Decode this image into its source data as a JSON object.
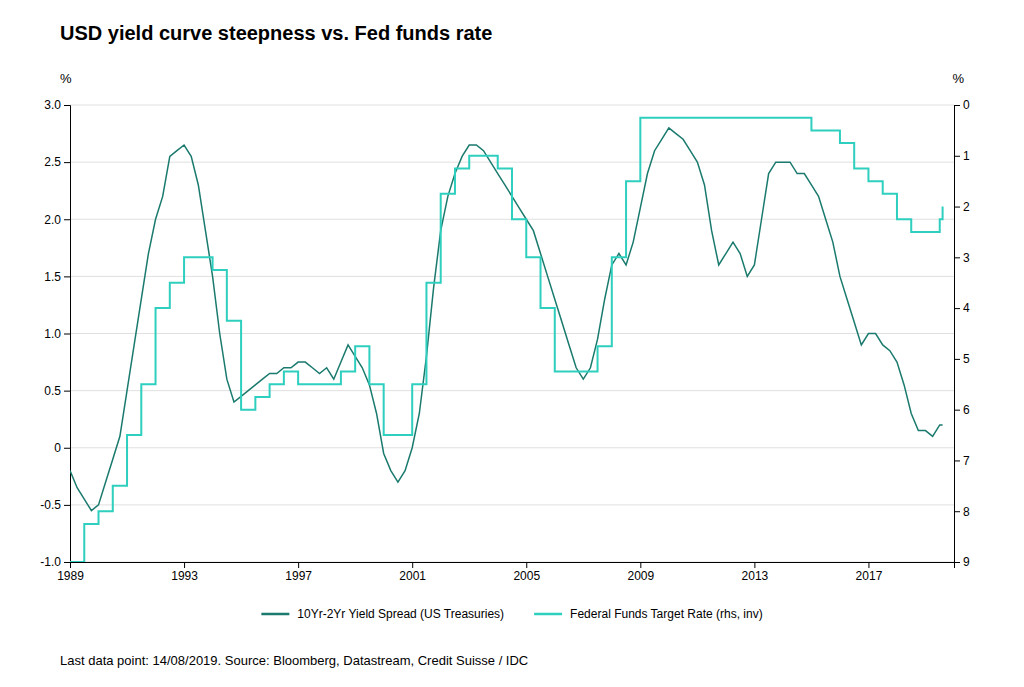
{
  "chart_data": {
    "type": "line",
    "title": "USD yield curve steepness vs. Fed funds rate",
    "ylabel": "%",
    "y2label": "%",
    "annotations": [
      "Last data point: 14/08/2019. Source: Bloomberg, Datastream, Credit Suisse / IDC"
    ],
    "background_color": "#ffffff",
    "xlim": [
      1989,
      2020
    ],
    "xticks": [
      1989,
      1993,
      1997,
      2001,
      2005,
      2009,
      2013,
      2017
    ],
    "ylim": [
      -1.0,
      3.0
    ],
    "yticks": [
      {
        "value": -1.0,
        "label": "-1.0"
      },
      -0.5,
      0,
      0.5,
      {
        "value": 1.0,
        "label": "1.0"
      },
      1.5,
      {
        "value": 2.0,
        "label": "2.0"
      },
      2.5,
      {
        "value": 3.0,
        "label": "3.0"
      }
    ],
    "y2lim": [
      9,
      0
    ],
    "y2ticks": [
      0,
      1,
      2,
      3,
      4,
      5,
      6,
      7,
      8,
      9
    ],
    "grid": true,
    "legend": "bottom",
    "series": [
      {
        "name": "10Yr-2Yr Yield Spread (US Treasuries)",
        "color": "#1a7a6e",
        "type": "line",
        "x": [
          1989.0,
          1989.25,
          1989.5,
          1989.75,
          1990.0,
          1990.25,
          1990.5,
          1990.75,
          1991.0,
          1991.25,
          1991.5,
          1991.75,
          1992.0,
          1992.25,
          1992.5,
          1992.75,
          1993.0,
          1993.25,
          1993.5,
          1993.75,
          1994.0,
          1994.25,
          1994.5,
          1994.75,
          1995.0,
          1995.25,
          1995.5,
          1995.75,
          1996.0,
          1996.25,
          1996.5,
          1996.75,
          1997.0,
          1997.25,
          1997.5,
          1997.75,
          1998.0,
          1998.25,
          1998.5,
          1998.75,
          1999.0,
          1999.25,
          1999.5,
          1999.75,
          2000.0,
          2000.25,
          2000.5,
          2000.75,
          2001.0,
          2001.25,
          2001.5,
          2001.75,
          2002.0,
          2002.25,
          2002.5,
          2002.75,
          2003.0,
          2003.25,
          2003.5,
          2003.75,
          2004.0,
          2004.25,
          2004.5,
          2004.75,
          2005.0,
          2005.25,
          2005.5,
          2005.75,
          2006.0,
          2006.25,
          2006.5,
          2006.75,
          2007.0,
          2007.25,
          2007.5,
          2007.75,
          2008.0,
          2008.25,
          2008.5,
          2008.75,
          2009.0,
          2009.25,
          2009.5,
          2009.75,
          2010.0,
          2010.25,
          2010.5,
          2010.75,
          2011.0,
          2011.25,
          2011.5,
          2011.75,
          2012.0,
          2012.25,
          2012.5,
          2012.75,
          2013.0,
          2013.25,
          2013.5,
          2013.75,
          2014.0,
          2014.25,
          2014.5,
          2014.75,
          2015.0,
          2015.25,
          2015.5,
          2015.75,
          2016.0,
          2016.25,
          2016.5,
          2016.75,
          2017.0,
          2017.25,
          2017.5,
          2017.75,
          2018.0,
          2018.25,
          2018.5,
          2018.75,
          2019.0,
          2019.25,
          2019.5,
          2019.6
        ],
        "values": [
          -0.2,
          -0.35,
          -0.45,
          -0.55,
          -0.5,
          -0.3,
          -0.1,
          0.1,
          0.5,
          0.9,
          1.3,
          1.7,
          2.0,
          2.2,
          2.55,
          2.6,
          2.65,
          2.55,
          2.3,
          1.9,
          1.5,
          1.0,
          0.6,
          0.4,
          0.45,
          0.5,
          0.55,
          0.6,
          0.65,
          0.65,
          0.7,
          0.7,
          0.75,
          0.75,
          0.7,
          0.65,
          0.7,
          0.6,
          0.75,
          0.9,
          0.8,
          0.7,
          0.55,
          0.3,
          -0.05,
          -0.2,
          -0.3,
          -0.2,
          0.0,
          0.3,
          0.8,
          1.4,
          1.9,
          2.2,
          2.4,
          2.55,
          2.65,
          2.65,
          2.6,
          2.5,
          2.4,
          2.3,
          2.2,
          2.1,
          2.0,
          1.9,
          1.7,
          1.5,
          1.3,
          1.1,
          0.9,
          0.7,
          0.6,
          0.7,
          0.95,
          1.3,
          1.6,
          1.7,
          1.6,
          1.8,
          2.1,
          2.4,
          2.6,
          2.7,
          2.8,
          2.75,
          2.7,
          2.6,
          2.5,
          2.3,
          1.9,
          1.6,
          1.7,
          1.8,
          1.7,
          1.5,
          1.6,
          2.0,
          2.4,
          2.5,
          2.5,
          2.5,
          2.4,
          2.4,
          2.3,
          2.2,
          2.0,
          1.8,
          1.5,
          1.3,
          1.1,
          0.9,
          1.0,
          1.0,
          0.9,
          0.85,
          0.75,
          0.55,
          0.3,
          0.15,
          0.15,
          0.1,
          0.2,
          0.2
        ]
      },
      {
        "name": "Federal Funds Target Rate (rhs, inv)",
        "color": "#2ecfbe",
        "type": "step",
        "axis": "y2",
        "x": [
          1989.0,
          1989.5,
          1990.0,
          1990.5,
          1991.0,
          1991.5,
          1992.0,
          1992.5,
          1993.0,
          1993.5,
          1994.0,
          1994.5,
          1995.0,
          1995.5,
          1996.0,
          1996.5,
          1997.0,
          1997.5,
          1998.0,
          1998.5,
          1999.0,
          1999.5,
          2000.0,
          2000.5,
          2001.0,
          2001.5,
          2002.0,
          2002.5,
          2003.0,
          2003.5,
          2004.0,
          2004.5,
          2005.0,
          2005.5,
          2006.0,
          2006.5,
          2007.0,
          2007.5,
          2008.0,
          2008.5,
          2009.0,
          2009.5,
          2010.0,
          2010.5,
          2011.0,
          2011.5,
          2012.0,
          2012.5,
          2013.0,
          2013.5,
          2014.0,
          2014.5,
          2015.0,
          2015.5,
          2016.0,
          2016.5,
          2017.0,
          2017.5,
          2018.0,
          2018.5,
          2019.0,
          2019.5,
          2019.6
        ],
        "values": [
          9.0,
          8.25,
          8.0,
          7.5,
          6.5,
          5.5,
          4.0,
          3.5,
          3.0,
          3.0,
          3.25,
          4.25,
          6.0,
          5.75,
          5.5,
          5.25,
          5.5,
          5.5,
          5.5,
          5.25,
          4.75,
          5.5,
          6.5,
          6.5,
          5.5,
          3.5,
          1.75,
          1.25,
          1.0,
          1.0,
          1.25,
          2.25,
          3.0,
          4.0,
          5.25,
          5.25,
          5.25,
          4.75,
          3.0,
          1.5,
          0.25,
          0.25,
          0.25,
          0.25,
          0.25,
          0.25,
          0.25,
          0.25,
          0.25,
          0.25,
          0.25,
          0.25,
          0.5,
          0.5,
          0.75,
          1.25,
          1.5,
          1.75,
          2.25,
          2.5,
          2.5,
          2.25,
          2.0
        ]
      }
    ]
  }
}
